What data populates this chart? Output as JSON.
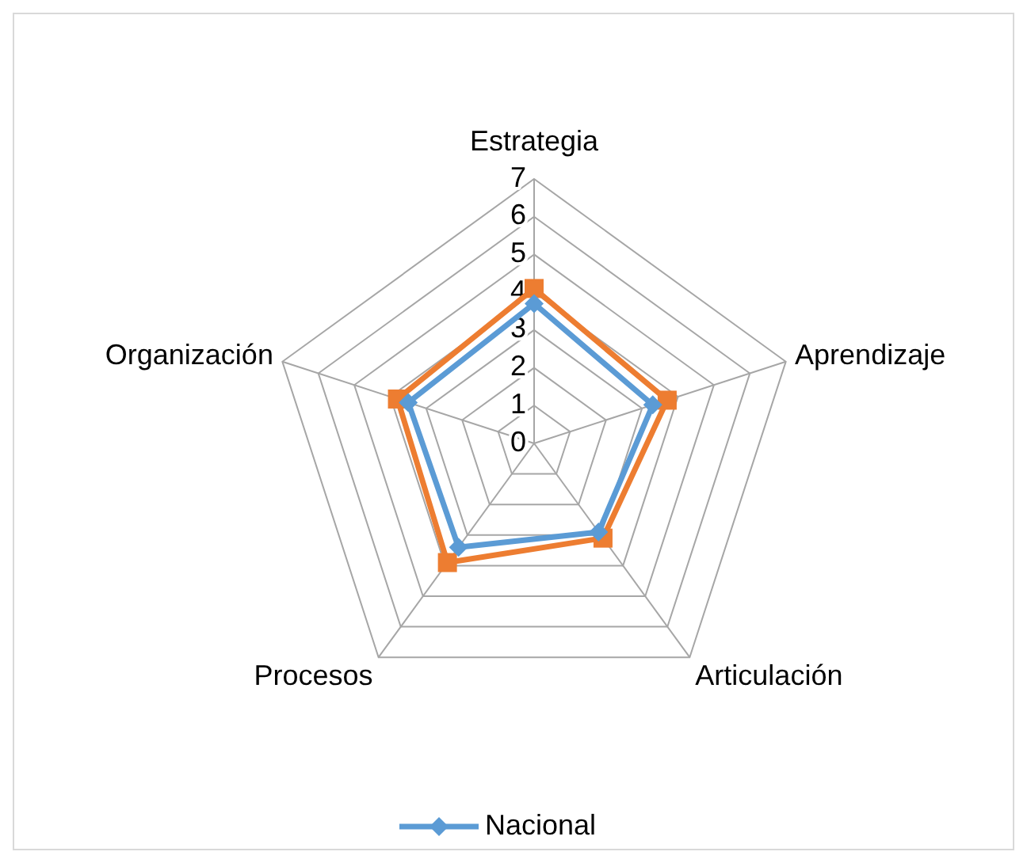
{
  "chart_data": {
    "type": "radar",
    "categories": [
      "Estrategia",
      "Aprendizaje",
      "Articulación",
      "Procesos",
      "Organización"
    ],
    "ylim": [
      0,
      7
    ],
    "yticks": [
      0,
      1,
      2,
      3,
      4,
      5,
      6,
      7
    ],
    "grid": true,
    "legend": "bottom",
    "line_style": "solid",
    "series": [
      {
        "name": "Nacional",
        "color": "#5b9bd5",
        "marker": "diamond",
        "values": [
          3.7,
          3.3,
          2.9,
          3.4,
          3.5
        ]
      },
      {
        "color": "#ed7d31",
        "marker": "square",
        "values": [
          4.1,
          3.7,
          3.1,
          3.9,
          3.8
        ]
      }
    ]
  }
}
